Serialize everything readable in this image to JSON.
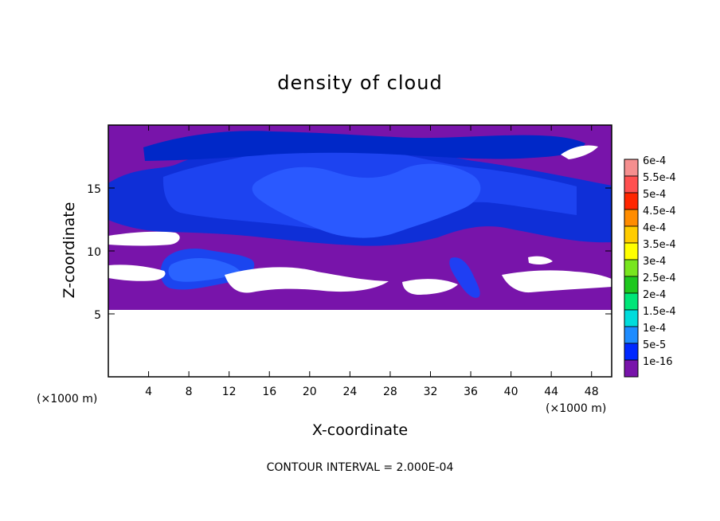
{
  "chart_data": {
    "type": "heatmap",
    "title": "density of cloud",
    "xlabel": "X-coordinate",
    "ylabel": "Z-coordinate",
    "x_unit_left": "(×1000 m)",
    "x_unit_right": "(×1000 m)",
    "xlim": [
      0,
      50
    ],
    "ylim": [
      0,
      20
    ],
    "x_ticks": [
      4,
      8,
      12,
      16,
      20,
      24,
      28,
      32,
      36,
      40,
      44,
      48
    ],
    "y_ticks": [
      5,
      10,
      15
    ],
    "footer": "CONTOUR INTERVAL = 2.000E-04",
    "colorbar": {
      "levels": [
        "6e-4",
        "5.5e-4",
        "5e-4",
        "4.5e-4",
        "4e-4",
        "3.5e-4",
        "3e-4",
        "2.5e-4",
        "2e-4",
        "1.5e-4",
        "1e-4",
        "5e-5",
        "1e-16"
      ],
      "colors": [
        "#f58f8f",
        "#ff5050",
        "#ff2600",
        "#ff8c00",
        "#ffcc00",
        "#ffff00",
        "#78e61e",
        "#1ec81e",
        "#00e678",
        "#00dcdc",
        "#1e8cff",
        "#0028ff",
        "#000096"
      ],
      "bottom_color": "#7814aa"
    },
    "field": {
      "background_color": "#7814aa",
      "regions": [
        {
          "x": [
            0,
            50
          ],
          "z": [
            5.3,
            20
          ],
          "value": "1e-16"
        },
        {
          "x": [
            5,
            13
          ],
          "z": [
            6.5,
            10
          ],
          "value": "1e-4"
        },
        {
          "x": [
            5,
            48
          ],
          "z": [
            11,
            19.5
          ],
          "value": "5e-5"
        },
        {
          "x": [
            14,
            38
          ],
          "z": [
            10.5,
            17
          ],
          "value": "1e-4"
        },
        {
          "x": [
            33,
            37
          ],
          "z": [
            6.5,
            9.5
          ],
          "value": "1e-4"
        }
      ]
    }
  }
}
